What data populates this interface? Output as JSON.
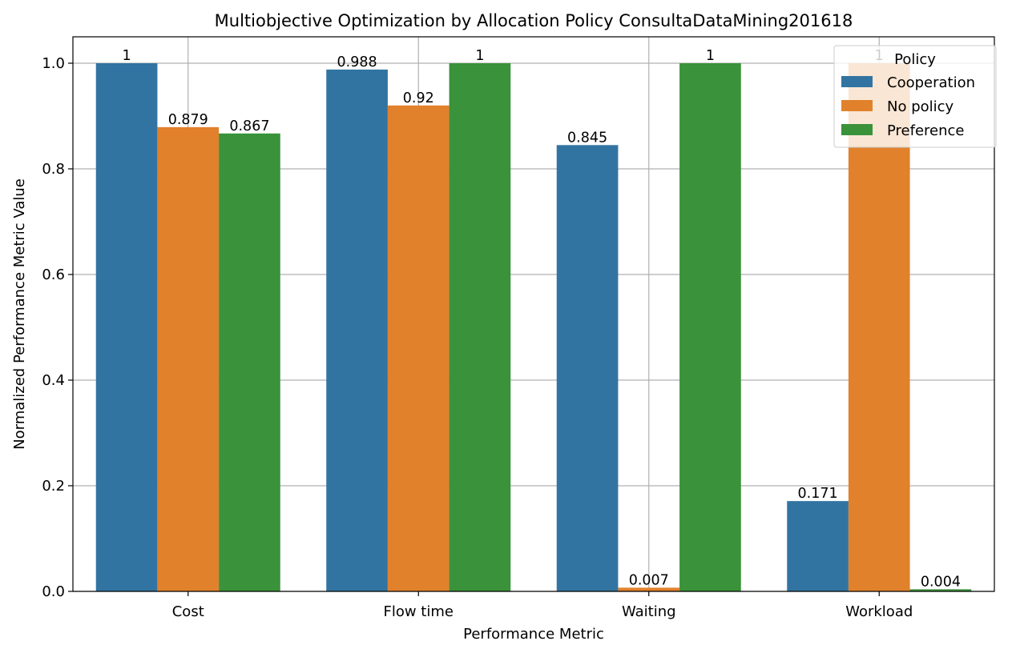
{
  "chart_data": {
    "type": "bar",
    "title": "Multiobjective Optimization by Allocation Policy ConsultaDataMining201618",
    "xlabel": "Performance Metric",
    "ylabel": "Normalized Performance Metric Value",
    "categories": [
      "Cost",
      "Flow time",
      "Waiting",
      "Workload"
    ],
    "series": [
      {
        "name": "Cooperation",
        "color": "#3274a1",
        "values": [
          1,
          0.988,
          0.845,
          0.171
        ],
        "labels": [
          "1",
          "0.988",
          "0.845",
          "0.171"
        ]
      },
      {
        "name": "No policy",
        "color": "#e1812c",
        "values": [
          0.879,
          0.92,
          0.007,
          1
        ],
        "labels": [
          "0.879",
          "0.92",
          "0.007",
          "1"
        ]
      },
      {
        "name": "Preference",
        "color": "#3a923a",
        "values": [
          0.867,
          1,
          1,
          0.004
        ],
        "labels": [
          "0.867",
          "1",
          "1",
          "0.004"
        ]
      }
    ],
    "ylim": [
      0,
      1.05
    ],
    "yticks": [
      0.0,
      0.2,
      0.4,
      0.6,
      0.8,
      1.0
    ],
    "ytick_labels": [
      "0.0",
      "0.2",
      "0.4",
      "0.6",
      "0.8",
      "1.0"
    ],
    "grid": true,
    "legend": {
      "title": "Policy",
      "placement": "top-right"
    }
  }
}
